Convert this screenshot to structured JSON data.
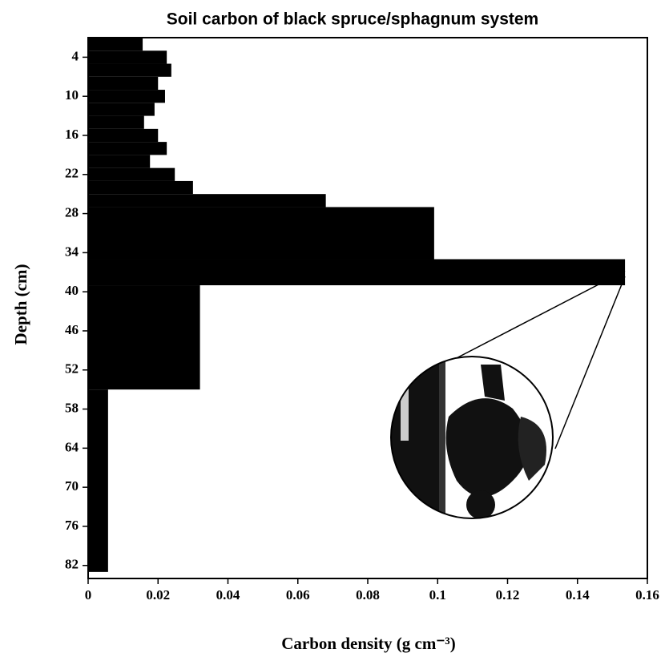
{
  "chart_data": {
    "type": "barh-histogram",
    "title": "Soil carbon of black spruce/sphagnum system",
    "xlabel": "Carbon density (g cm⁻³)",
    "ylabel": "Depth (cm)",
    "bins": [
      1,
      3,
      5,
      7,
      9,
      11,
      13,
      15,
      17,
      19,
      21,
      23,
      25,
      27,
      35,
      39,
      55,
      83
    ],
    "values": [
      0.0156,
      0.0225,
      0.0238,
      0.02,
      0.022,
      0.019,
      0.016,
      0.02,
      0.0225,
      0.0177,
      0.0248,
      0.03,
      0.068,
      0.099,
      0.1536,
      0.032,
      0.0057
    ],
    "color": "#000000",
    "xlim": [
      0,
      0.16
    ],
    "xticks": [
      0,
      0.02,
      0.04,
      0.06,
      0.08,
      0.1,
      0.12,
      0.14,
      0.16
    ],
    "ylim": [
      1,
      84
    ],
    "yticks": [
      4,
      10,
      16,
      22,
      28,
      34,
      40,
      46,
      52,
      58,
      64,
      70,
      76,
      82
    ],
    "y_inverted": true
  }
}
